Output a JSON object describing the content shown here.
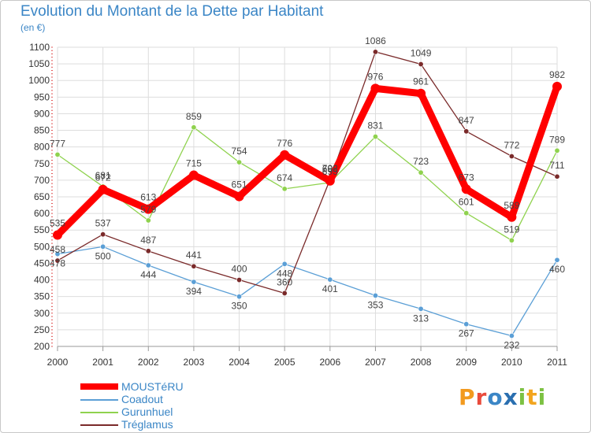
{
  "title": "Evolution du Montant de la Dette par Habitant",
  "subtitle": "(en €)",
  "logo_text": "Proxiti",
  "chart_data": {
    "type": "line",
    "title": "Evolution du Montant de la Dette par Habitant",
    "ylabel": "(en €)",
    "xlabel": "",
    "categories": [
      "2000",
      "2001",
      "2002",
      "2003",
      "2004",
      "2005",
      "2006",
      "2007",
      "2008",
      "2009",
      "2010",
      "2011"
    ],
    "ylim": [
      200,
      1100
    ],
    "yticks": [
      200,
      250,
      300,
      350,
      400,
      450,
      500,
      550,
      600,
      650,
      700,
      750,
      800,
      850,
      900,
      950,
      1000,
      1050,
      1100
    ],
    "grid": true,
    "legend_position": "bottom-left",
    "series": [
      {
        "name": "MOUSTéRU",
        "color": "#ff0000",
        "values": [
          535,
          672,
          613,
          715,
          651,
          776,
          698,
          976,
          961,
          673,
          589,
          982
        ]
      },
      {
        "name": "Coadout",
        "color": "#5b9fd6",
        "values": [
          478,
          500,
          444,
          394,
          350,
          448,
          401,
          353,
          313,
          267,
          232,
          460
        ]
      },
      {
        "name": "Gurunhuel",
        "color": "#8fd24e",
        "values": [
          777,
          681,
          579,
          859,
          754,
          674,
          693,
          831,
          723,
          601,
          519,
          789
        ]
      },
      {
        "name": "Tréglamus",
        "color": "#7a2a2a",
        "values": [
          458,
          537,
          487,
          441,
          400,
          360,
          702,
          1086,
          1049,
          847,
          772,
          711
        ]
      }
    ]
  }
}
